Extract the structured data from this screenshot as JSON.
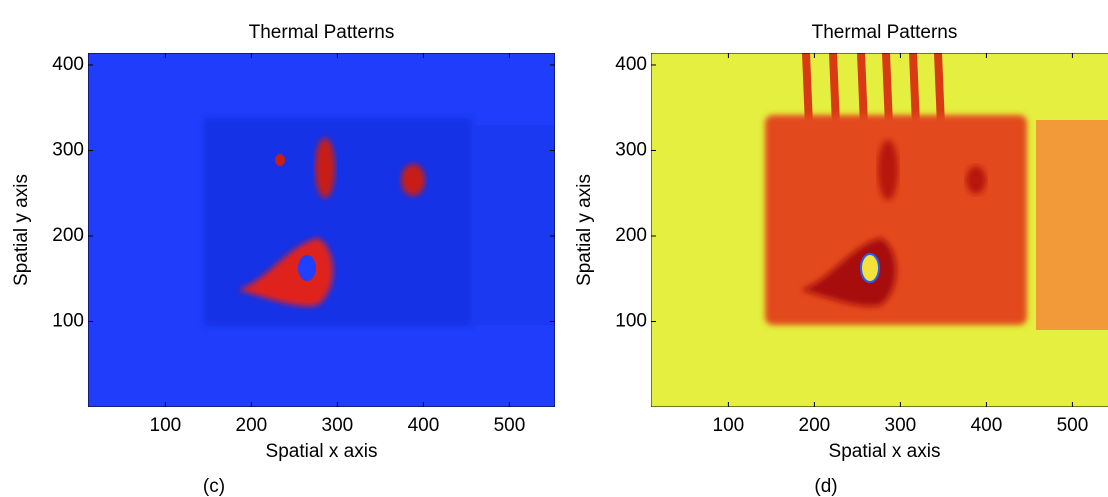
{
  "chart_data": [
    {
      "type": "heatmap",
      "title": "Thermal Patterns",
      "xlabel": "Spatial x axis",
      "ylabel": "Spatial y axis",
      "caption": "(c)",
      "xlim": [
        10,
        553
      ],
      "ylim": [
        0,
        414
      ],
      "xticks": [
        100,
        200,
        300,
        400,
        500
      ],
      "yticks": [
        100,
        200,
        300,
        400
      ],
      "background_color": "#1f3dfa"
    },
    {
      "type": "heatmap",
      "title": "Thermal Patterns",
      "xlabel": "Spatial x axis",
      "ylabel": "Spatial y axis",
      "caption": "(d)",
      "xlim": [
        10,
        553
      ],
      "ylim": [
        0,
        414
      ],
      "xticks": [
        100,
        200,
        300,
        400,
        500
      ],
      "yticks": [
        100,
        200,
        300,
        400
      ],
      "background_color": "#e4ef3f"
    }
  ]
}
